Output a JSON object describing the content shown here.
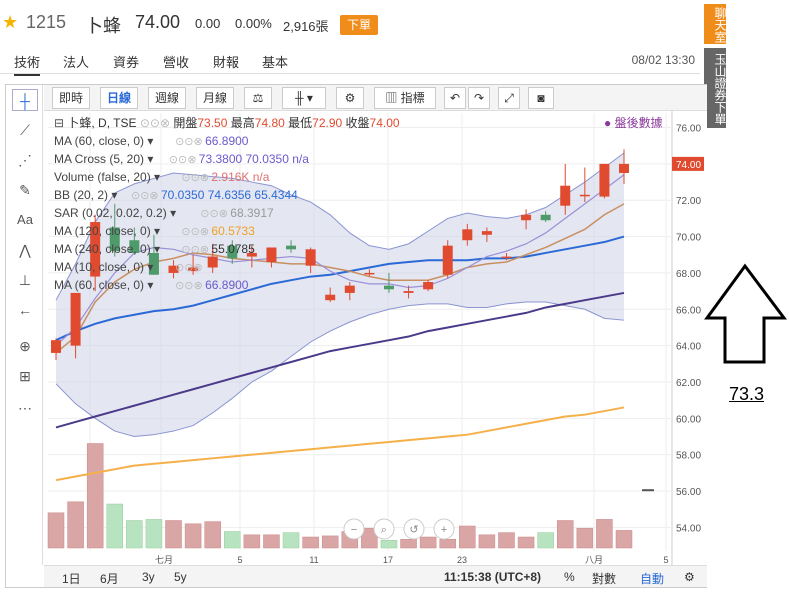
{
  "header": {
    "code": "1215",
    "name": "卜蜂",
    "price": "74.00",
    "change": "0.00",
    "change_pct": "0.00%",
    "volume": "2,916張",
    "order_label": "下單"
  },
  "tabs": [
    "技術",
    "法人",
    "資券",
    "營收",
    "財報",
    "基本"
  ],
  "timestamp": "08/02 13:30",
  "side_buttons": {
    "chat": "聊天室",
    "broker": "玉山證券下單"
  },
  "toolbar": {
    "period_buttons": [
      "即時",
      "日線",
      "週線",
      "月線"
    ],
    "indicators_label": "指標"
  },
  "legend": {
    "symbol": "卜蜂, D, TSE",
    "open_label": "開盤",
    "open": "73.50",
    "high_label": "最高",
    "high": "74.80",
    "low_label": "最低",
    "low": "72.90",
    "close_label": "收盤",
    "close": "74.00",
    "after_hours": "盤後數據",
    "rows": [
      {
        "label": "MA (60, close, 0)",
        "value": "66.8900",
        "color": "#6a5acd"
      },
      {
        "label": "MA Cross (5, 20)",
        "value": "73.3800  70.0350  n/a",
        "color": "#6a5acd"
      },
      {
        "label": "Volume (false, 20)",
        "value": "2.916K  n/a",
        "color": "#e07070"
      },
      {
        "label": "BB (20, 2)",
        "value": "70.0350  74.6356  65.4344",
        "color": "#2b6ad6"
      },
      {
        "label": "SAR (0.02, 0.02, 0.2)",
        "value": "68.3917",
        "color": "#999999"
      },
      {
        "label": "MA (120, close, 0)",
        "value": "60.5733",
        "color": "#f0a020"
      },
      {
        "label": "MA (240, close, 0)",
        "value": "55.0785",
        "color": "#333333"
      },
      {
        "label": "MA (10, close, 0)",
        "value": "",
        "color": "#333333"
      },
      {
        "label": "MA (60, close, 0)",
        "value": "66.8900",
        "color": "#6a5acd"
      }
    ]
  },
  "bottom": {
    "ranges": [
      "1日",
      "6月",
      "3y",
      "5y"
    ],
    "time": "11:15:38 (UTC+8)",
    "pct": "%",
    "log": "對數",
    "auto": "自動"
  },
  "annotation": {
    "value": "73.3"
  },
  "chart_data": {
    "type": "candlestick",
    "x_tick_labels": [
      "七月",
      "5",
      "11",
      "17",
      "23",
      "八月",
      "5"
    ],
    "y_ticks": [
      "76.00",
      "74.00",
      "72.00",
      "70.00",
      "68.00",
      "66.00",
      "64.00",
      "62.00",
      "60.00",
      "58.00",
      "56.00",
      "54.00"
    ],
    "ylim": [
      52.7,
      76.8
    ],
    "last_price_label": "74.00",
    "candles": [
      {
        "o": 63.6,
        "h": 64.4,
        "l": 63.2,
        "c": 64.3
      },
      {
        "o": 64.0,
        "h": 66.9,
        "l": 63.3,
        "c": 66.9
      },
      {
        "o": 67.8,
        "h": 71.2,
        "l": 67.0,
        "c": 70.8
      },
      {
        "o": 70.5,
        "h": 71.8,
        "l": 68.9,
        "c": 69.2
      },
      {
        "o": 69.8,
        "h": 70.5,
        "l": 69.0,
        "c": 69.1
      },
      {
        "o": 69.1,
        "h": 70.1,
        "l": 67.9,
        "c": 67.9
      },
      {
        "o": 68.0,
        "h": 68.7,
        "l": 67.7,
        "c": 68.4
      },
      {
        "o": 68.1,
        "h": 69.0,
        "l": 67.9,
        "c": 68.3
      },
      {
        "o": 68.3,
        "h": 69.6,
        "l": 68.0,
        "c": 68.9
      },
      {
        "o": 69.5,
        "h": 69.8,
        "l": 68.5,
        "c": 68.8
      },
      {
        "o": 68.9,
        "h": 69.5,
        "l": 68.3,
        "c": 69.1
      },
      {
        "o": 68.6,
        "h": 69.4,
        "l": 68.3,
        "c": 69.4
      },
      {
        "o": 69.5,
        "h": 69.8,
        "l": 69.1,
        "c": 69.3
      },
      {
        "o": 68.4,
        "h": 69.4,
        "l": 68.0,
        "c": 69.3
      },
      {
        "o": 66.5,
        "h": 67.2,
        "l": 66.4,
        "c": 66.8
      },
      {
        "o": 66.9,
        "h": 67.5,
        "l": 66.5,
        "c": 67.3
      },
      {
        "o": 68.0,
        "h": 68.2,
        "l": 67.8,
        "c": 68.0
      },
      {
        "o": 67.3,
        "h": 68.0,
        "l": 66.9,
        "c": 67.1
      },
      {
        "o": 66.9,
        "h": 67.3,
        "l": 66.6,
        "c": 67.0
      },
      {
        "o": 67.1,
        "h": 67.6,
        "l": 67.0,
        "c": 67.5
      },
      {
        "o": 67.9,
        "h": 69.8,
        "l": 67.7,
        "c": 69.5
      },
      {
        "o": 69.8,
        "h": 70.7,
        "l": 69.5,
        "c": 70.4
      },
      {
        "o": 70.1,
        "h": 70.5,
        "l": 69.7,
        "c": 70.3
      },
      {
        "o": 68.9,
        "h": 69.1,
        "l": 68.7,
        "c": 68.9
      },
      {
        "o": 70.9,
        "h": 71.5,
        "l": 70.4,
        "c": 71.2
      },
      {
        "o": 71.2,
        "h": 71.4,
        "l": 70.8,
        "c": 70.9
      },
      {
        "o": 71.7,
        "h": 74.0,
        "l": 71.2,
        "c": 72.8
      },
      {
        "o": 72.3,
        "h": 73.8,
        "l": 71.9,
        "c": 72.3
      },
      {
        "o": 72.2,
        "h": 74.0,
        "l": 72.1,
        "c": 74.0
      },
      {
        "o": 73.5,
        "h": 74.8,
        "l": 72.9,
        "c": 74.0
      }
    ],
    "volume_rel": [
      0.32,
      0.42,
      0.95,
      0.4,
      0.25,
      0.26,
      0.25,
      0.22,
      0.24,
      0.15,
      0.12,
      0.12,
      0.14,
      0.1,
      0.11,
      0.15,
      0.18,
      0.07,
      0.08,
      0.1,
      0.08,
      0.2,
      0.12,
      0.14,
      0.1,
      0.14,
      0.25,
      0.18,
      0.26,
      0.16
    ],
    "bb_upper": [
      66.5,
      68.5,
      70.8,
      72.4,
      72.9,
      73.2,
      73.5,
      73.4,
      73.3,
      73.2,
      73.0,
      72.8,
      72.3,
      71.9,
      71.2,
      70.2,
      69.5,
      69.3,
      69.6,
      70.3,
      71.0,
      71.3,
      71.1,
      71.0,
      71.2,
      71.6,
      72.3,
      73.0,
      73.8,
      74.6
    ],
    "bb_lower": [
      61.9,
      60.8,
      60.0,
      59.3,
      59.0,
      59.1,
      59.3,
      59.6,
      60.3,
      61.1,
      62.0,
      62.6,
      63.4,
      64.2,
      64.8,
      65.3,
      65.7,
      66.0,
      66.2,
      66.3,
      66.3,
      66.1,
      66.1,
      66.3,
      66.4,
      66.4,
      66.2,
      66.0,
      65.5,
      65.4
    ],
    "ma_blue": [
      64.3,
      64.8,
      65.2,
      65.5,
      65.7,
      65.9,
      66.0,
      66.2,
      66.5,
      66.8,
      67.1,
      67.4,
      67.6,
      67.8,
      67.9,
      68.1,
      68.3,
      68.5,
      68.6,
      68.7,
      68.7,
      68.7,
      68.8,
      68.8,
      68.9,
      69.1,
      69.3,
      69.5,
      69.7,
      70.0
    ],
    "ma_tan": [
      63.6,
      64.5,
      66.4,
      67.5,
      68.2,
      68.6,
      68.8,
      69.1,
      69.0,
      68.8,
      68.7,
      68.6,
      68.5,
      68.5,
      68.3,
      68.1,
      67.8,
      67.6,
      67.6,
      67.6,
      67.9,
      68.3,
      68.5,
      68.6,
      69.0,
      69.4,
      69.9,
      70.4,
      71.2,
      71.8
    ],
    "ma_lilac": [
      64.0,
      65.0,
      66.6,
      68.0,
      69.1,
      69.4,
      69.3,
      69.0,
      68.8,
      68.6,
      68.7,
      68.8,
      68.9,
      68.8,
      68.1,
      67.6,
      67.4,
      67.4,
      67.2,
      67.3,
      67.7,
      68.3,
      68.9,
      69.2,
      69.6,
      70.2,
      71.0,
      71.8,
      72.6,
      73.4
    ],
    "ma_purple": [
      59.5,
      59.8,
      60.1,
      60.4,
      60.7,
      61.0,
      61.3,
      61.6,
      61.9,
      62.2,
      62.5,
      62.8,
      63.1,
      63.4,
      63.7,
      63.9,
      64.1,
      64.3,
      64.5,
      64.8,
      65.0,
      65.2,
      65.4,
      65.6,
      65.8,
      66.1,
      66.3,
      66.5,
      66.7,
      66.9
    ],
    "ma_orange": [
      56.6,
      56.8,
      57.0,
      57.2,
      57.4,
      57.5,
      57.6,
      57.7,
      57.8,
      57.9,
      58.0,
      58.1,
      58.2,
      58.3,
      58.4,
      58.5,
      58.6,
      58.7,
      58.8,
      58.9,
      59.0,
      59.1,
      59.3,
      59.5,
      59.7,
      59.9,
      60.1,
      60.2,
      60.4,
      60.6
    ]
  }
}
